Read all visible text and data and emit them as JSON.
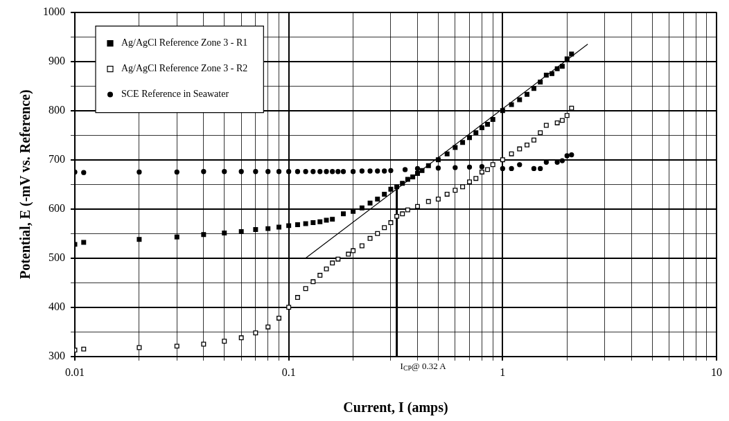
{
  "chart_data": {
    "type": "scatter",
    "xlabel": "Current, I (amps)",
    "ylabel": "Potential, E (-mV vs. Reference)",
    "log": "x",
    "grid": true,
    "legend": "top left",
    "xlim": [
      0.01,
      10
    ],
    "ylim": [
      300,
      1000
    ],
    "xticks": [
      0.01,
      {
        "value": 0.02,
        "label": null
      },
      {
        "value": 0.03,
        "label": null
      },
      {
        "value": 0.04,
        "label": null
      },
      {
        "value": 0.05,
        "label": null
      },
      {
        "value": 0.06,
        "label": null
      },
      {
        "value": 0.07,
        "label": null
      },
      {
        "value": 0.08,
        "label": null
      },
      {
        "value": 0.09,
        "label": null
      },
      0.1,
      {
        "value": 0.2,
        "label": null
      },
      {
        "value": 0.3,
        "label": null
      },
      {
        "value": 0.4,
        "label": null
      },
      {
        "value": 0.5,
        "label": null
      },
      {
        "value": 0.6,
        "label": null
      },
      {
        "value": 0.7,
        "label": null
      },
      {
        "value": 0.8,
        "label": null
      },
      {
        "value": 0.9,
        "label": null
      },
      1,
      {
        "value": 2,
        "label": null
      },
      {
        "value": 3,
        "label": null
      },
      {
        "value": 4,
        "label": null
      },
      {
        "value": 5,
        "label": null
      },
      {
        "value": 6,
        "label": null
      },
      {
        "value": 7,
        "label": null
      },
      {
        "value": 8,
        "label": null
      },
      {
        "value": 9,
        "label": null
      },
      10
    ],
    "yticks": [
      300,
      {
        "value": 350,
        "label": null
      },
      400,
      {
        "value": 450,
        "label": null
      },
      500,
      {
        "value": 550,
        "label": null
      },
      600,
      {
        "value": 650,
        "label": null
      },
      700,
      {
        "value": 750,
        "label": null
      },
      800,
      {
        "value": 850,
        "label": null
      },
      900,
      {
        "value": 950,
        "label": null
      },
      1000
    ],
    "series": [
      {
        "name": "Ag/AgCl Reference Zone 3 - R1",
        "color": "#000000",
        "marker": "square",
        "x": [
          0.01,
          0.011,
          0.02,
          0.03,
          0.04,
          0.05,
          0.06,
          0.07,
          0.08,
          0.09,
          0.1,
          0.11,
          0.12,
          0.13,
          0.14,
          0.15,
          0.16,
          0.18,
          0.2,
          0.22,
          0.24,
          0.26,
          0.28,
          0.3,
          0.32,
          0.34,
          0.36,
          0.38,
          0.4,
          0.42,
          0.45,
          0.5,
          0.55,
          0.6,
          0.65,
          0.7,
          0.75,
          0.8,
          0.85,
          0.9,
          1.0,
          1.1,
          1.2,
          1.3,
          1.4,
          1.5,
          1.6,
          1.7,
          1.8,
          1.9,
          2.0,
          2.1
        ],
        "values": [
          528,
          532,
          538,
          543,
          548,
          551,
          554,
          558,
          560,
          563,
          566,
          568,
          570,
          572,
          574,
          577,
          579,
          590,
          595,
          602,
          612,
          620,
          630,
          640,
          645,
          652,
          660,
          665,
          672,
          678,
          688,
          700,
          712,
          725,
          735,
          745,
          755,
          765,
          772,
          782,
          800,
          812,
          822,
          833,
          845,
          858,
          872,
          875,
          885,
          890,
          905,
          915
        ]
      },
      {
        "name": "Ag/AgCl Reference Zone 3 - R2",
        "color": "#000000",
        "marker": "square",
        "x": [
          0.01,
          0.011,
          0.02,
          0.03,
          0.04,
          0.05,
          0.06,
          0.07,
          0.08,
          0.09,
          0.1,
          0.11,
          0.12,
          0.13,
          0.14,
          0.15,
          0.16,
          0.17,
          0.19,
          0.2,
          0.22,
          0.24,
          0.26,
          0.28,
          0.3,
          0.32,
          0.34,
          0.36,
          0.4,
          0.45,
          0.5,
          0.55,
          0.6,
          0.65,
          0.7,
          0.75,
          0.8,
          0.85,
          0.9,
          1.0,
          1.1,
          1.2,
          1.3,
          1.4,
          1.5,
          1.6,
          1.8,
          1.9,
          2.0,
          2.1
        ],
        "values": [
          313,
          315,
          318,
          321,
          325,
          331,
          338,
          348,
          360,
          378,
          400,
          420,
          438,
          452,
          465,
          478,
          490,
          498,
          508,
          515,
          525,
          540,
          550,
          562,
          572,
          585,
          590,
          598,
          605,
          615,
          620,
          630,
          638,
          645,
          655,
          662,
          675,
          680,
          690,
          700,
          712,
          722,
          730,
          740,
          755,
          770,
          775,
          780,
          790,
          805
        ]
      },
      {
        "name": "SCE Reference in Seawater",
        "color": "#000000",
        "marker": "circle",
        "x": [
          0.01,
          0.011,
          0.02,
          0.03,
          0.04,
          0.05,
          0.06,
          0.07,
          0.08,
          0.09,
          0.1,
          0.11,
          0.12,
          0.13,
          0.14,
          0.15,
          0.16,
          0.17,
          0.18,
          0.2,
          0.22,
          0.24,
          0.26,
          0.28,
          0.3,
          0.35,
          0.4,
          0.45,
          0.5,
          0.6,
          0.7,
          0.8,
          0.9,
          1.0,
          1.1,
          1.2,
          1.4,
          1.5,
          1.6,
          1.8,
          1.9,
          2.0,
          2.1
        ],
        "values": [
          675,
          674,
          675,
          675,
          676,
          676,
          676,
          676,
          676,
          676,
          676,
          676,
          676,
          676,
          676,
          676,
          676,
          676,
          676,
          676,
          677,
          677,
          677,
          677,
          678,
          680,
          682,
          null,
          683,
          684,
          685,
          686,
          null,
          682,
          682,
          690,
          682,
          682,
          695,
          695,
          698,
          708,
          710
        ]
      },
      {
        "type": "line",
        "color": "#000000",
        "marker": "none",
        "x": [
          0.12,
          2.5
        ],
        "values": [
          500,
          935
        ]
      },
      {
        "type": "line",
        "color": "#000000",
        "marker": "none",
        "x": [
          0.32,
          0.32
        ],
        "values": [
          300,
          645
        ]
      }
    ],
    "annotations": [
      {
        "text": "I$_{CP}$@ 0.32 A",
        "x": 0.32,
        "y": 300
      }
    ]
  }
}
